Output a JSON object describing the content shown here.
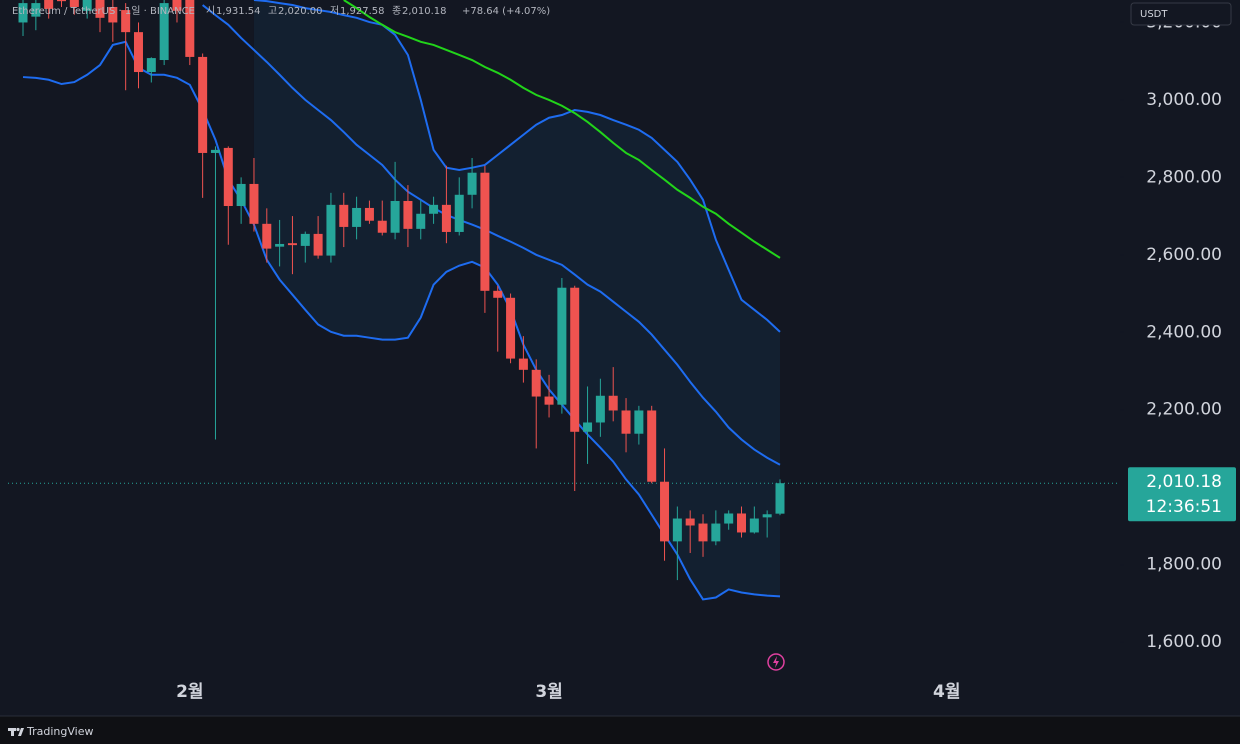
{
  "chart_data": {
    "type": "candlestick",
    "title": "Ethereum / TetherUS · 1일 · BINANCE",
    "ohlc_header": [
      {
        "label": "시",
        "value": "1,931.54"
      },
      {
        "label": "고",
        "value": "2,020.00"
      },
      {
        "label": "저",
        "value": "1,927.58"
      },
      {
        "label": "종",
        "value": "2,010.18"
      }
    ],
    "change": "+78.64 (+4.07%)",
    "currency": "USDT",
    "branding": "TradingView",
    "categories": [
      null,
      null,
      null,
      null,
      null,
      null,
      null,
      null,
      null,
      null,
      null,
      null,
      null,
      "2월",
      null,
      null,
      null,
      null,
      null,
      null,
      null,
      null,
      null,
      null,
      null,
      null,
      null,
      null,
      null,
      null,
      null,
      null,
      null,
      null,
      null,
      null,
      null,
      null,
      null,
      null,
      null,
      "3월",
      null,
      null,
      null,
      null,
      null,
      null,
      null,
      null,
      null,
      null,
      null,
      null,
      null,
      null,
      null,
      null,
      null,
      null,
      null,
      null,
      null,
      null,
      null,
      null,
      null,
      null,
      null,
      null,
      null,
      null,
      "4월",
      null,
      null,
      null,
      null,
      null,
      null,
      null,
      null,
      null,
      null,
      null,
      null,
      null
    ],
    "open": [
      3200,
      3215,
      3260,
      3275,
      3270,
      3230,
      3265,
      3240,
      3232,
      3175,
      3072,
      3103,
      3280,
      3260,
      3111,
      2863,
      2876,
      2726,
      2783,
      2680,
      2621,
      2630,
      2623,
      2654,
      2598,
      2729,
      2672,
      2721,
      2688,
      2657,
      2739,
      2667,
      2706,
      2729,
      2659,
      2755,
      2812,
      2507,
      2489,
      2332,
      2303,
      2234,
      2213,
      2515,
      2143,
      2167,
      2236,
      2198,
      2138,
      2198,
      2014,
      1860,
      1919,
      1906,
      1860,
      1906,
      1932,
      1883,
      1922,
      1931.54,
      null,
      null,
      null,
      null,
      null,
      null,
      null,
      null,
      null,
      null,
      null,
      null,
      null,
      null,
      null,
      null,
      null,
      null,
      null,
      null,
      null,
      null,
      null,
      null,
      null,
      null
    ],
    "high": [
      3290,
      3275,
      3300,
      3320,
      3310,
      3300,
      3300,
      3290,
      3250,
      3200,
      3110,
      3300,
      3320,
      3300,
      3120,
      2880,
      2880,
      2800,
      2850,
      2720,
      2690,
      2700,
      2660,
      2700,
      2760,
      2760,
      2750,
      2740,
      2740,
      2840,
      2780,
      2740,
      2750,
      2830,
      2800,
      2850,
      2830,
      2520,
      2500,
      2390,
      2330,
      2290,
      2540,
      2520,
      2260,
      2280,
      2310,
      2230,
      2210,
      2210,
      2100,
      1950,
      1940,
      1930,
      1940,
      1940,
      1950,
      1950,
      1940,
      2020,
      null,
      null,
      null,
      null,
      null,
      null,
      null,
      null,
      null,
      null,
      null,
      null,
      null,
      null,
      null,
      null,
      null,
      null,
      null,
      null,
      null,
      null,
      null,
      null,
      null,
      null
    ],
    "low": [
      3165,
      3180,
      3210,
      3240,
      3220,
      3210,
      3175,
      3150,
      3025,
      3030,
      3045,
      3090,
      3200,
      3090,
      2747,
      2123,
      2626,
      2680,
      2660,
      2580,
      2570,
      2550,
      2580,
      2590,
      2580,
      2620,
      2640,
      2680,
      2650,
      2640,
      2620,
      2640,
      2680,
      2630,
      2650,
      2720,
      2450,
      2350,
      2320,
      2270,
      2100,
      2180,
      2190,
      1990,
      2060,
      2130,
      2170,
      2090,
      2110,
      2010,
      1810,
      1760,
      1830,
      1820,
      1850,
      1890,
      1870,
      1880,
      1870,
      1927.58,
      null,
      null,
      null,
      null,
      null,
      null,
      null,
      null,
      null,
      null,
      null,
      null,
      null,
      null,
      null,
      null,
      null,
      null,
      null,
      null,
      null,
      null,
      null,
      null,
      null,
      null
    ],
    "close": [
      3250,
      3250,
      3235,
      3255,
      3240,
      3270,
      3212,
      3200,
      3175,
      3072,
      3108,
      3250,
      3230,
      3111,
      2863,
      2871,
      2726,
      2783,
      2680,
      2616,
      2628,
      2625,
      2654,
      2598,
      2729,
      2672,
      2721,
      2688,
      2657,
      2739,
      2667,
      2706,
      2729,
      2659,
      2755,
      2812,
      2507,
      2489,
      2332,
      2303,
      2234,
      2213,
      2515,
      2143,
      2167,
      2236,
      2198,
      2138,
      2198,
      2014,
      1860,
      1919,
      1901,
      1860,
      1906,
      1932,
      1883,
      1919,
      1930,
      2010.18,
      null,
      null,
      null,
      null,
      null,
      null,
      null,
      null,
      null,
      null,
      null,
      null,
      null,
      null,
      null,
      null,
      null,
      null,
      null,
      null,
      null,
      null,
      null,
      null,
      null,
      null
    ],
    "up_color": "#26a69a",
    "down_color": "#ef5350",
    "series": [
      {
        "color": "#1e6cf0",
        "values": [
          null,
          null,
          null,
          null,
          null,
          null,
          null,
          null,
          null,
          null,
          null,
          null,
          null,
          null,
          null,
          null,
          null,
          null,
          3258,
          3255,
          3250,
          3245,
          3237,
          3232,
          3227,
          3219,
          3212,
          3201,
          3194,
          3168,
          3116,
          3000,
          2871,
          2825,
          2819,
          2825,
          2832,
          2858,
          2884,
          2910,
          2936,
          2954,
          2961,
          2974,
          2969,
          2961,
          2948,
          2936,
          2923,
          2902,
          2871,
          2840,
          2794,
          2742,
          2639,
          2561,
          2484,
          2458,
          2432,
          2401,
          null,
          null,
          null,
          null,
          null,
          null,
          null,
          null,
          null,
          null,
          null,
          null,
          null,
          null,
          null,
          null,
          null,
          null,
          null,
          null,
          null,
          null,
          null,
          null,
          null,
          null
        ]
      },
      {
        "color": "#1e6cf0",
        "values": [
          null,
          null,
          null,
          null,
          null,
          null,
          null,
          null,
          null,
          null,
          null,
          null,
          null,
          null,
          3245,
          3219,
          3194,
          3160,
          3129,
          3098,
          3065,
          3031,
          3000,
          2974,
          2948,
          2917,
          2884,
          2858,
          2832,
          2794,
          2763,
          2742,
          2721,
          2703,
          2690,
          2678,
          2665,
          2649,
          2634,
          2618,
          2600,
          2587,
          2574,
          2549,
          2523,
          2505,
          2479,
          2453,
          2427,
          2394,
          2355,
          2316,
          2272,
          2231,
          2195,
          2154,
          2123,
          2097,
          2076,
          2058,
          null,
          null,
          null,
          null,
          null,
          null,
          null,
          null,
          null,
          null,
          null,
          null,
          null,
          null,
          null,
          null,
          null,
          null,
          null,
          null,
          null,
          null,
          null,
          null,
          null,
          null
        ]
      },
      {
        "color": "#1e6cf0",
        "values": [
          3059,
          3057,
          3052,
          3041,
          3046,
          3065,
          3090,
          3142,
          3150,
          3083,
          3065,
          3065,
          3057,
          3039,
          2974,
          2897,
          2794,
          2742,
          2678,
          2587,
          2536,
          2497,
          2458,
          2420,
          2401,
          2391,
          2391,
          2386,
          2381,
          2381,
          2386,
          2438,
          2523,
          2556,
          2572,
          2582,
          2567,
          2523,
          2458,
          2368,
          2303,
          2252,
          2213,
          2174,
          2136,
          2102,
          2066,
          2020,
          1981,
          1929,
          1877,
          1826,
          1762,
          1710,
          1715,
          1736,
          1728,
          1723,
          1720,
          1718,
          null,
          null,
          null,
          null,
          null,
          null,
          null,
          null,
          null,
          null,
          null,
          null,
          null,
          null,
          null,
          null,
          null,
          null,
          null,
          null,
          null,
          null,
          null,
          null,
          null,
          null
        ]
      },
      {
        "color": "#22d41a",
        "values": [
          null,
          null,
          null,
          null,
          null,
          null,
          null,
          null,
          null,
          null,
          null,
          null,
          null,
          null,
          null,
          null,
          null,
          null,
          null,
          null,
          null,
          null,
          null,
          null,
          null,
          3258,
          3237,
          3214,
          3194,
          3175,
          3163,
          3150,
          3142,
          3129,
          3116,
          3103,
          3085,
          3070,
          3052,
          3031,
          3013,
          3000,
          2985,
          2966,
          2943,
          2917,
          2889,
          2863,
          2845,
          2819,
          2794,
          2768,
          2747,
          2724,
          2706,
          2680,
          2657,
          2634,
          2613,
          2592,
          null,
          null,
          null,
          null,
          null,
          null,
          null,
          null,
          null,
          null,
          null,
          null,
          null,
          null,
          null,
          null,
          null,
          null,
          null,
          null,
          null,
          null,
          null,
          null,
          null,
          null
        ]
      }
    ],
    "ylim": [
      1502,
      3258
    ],
    "yticks": [
      {
        "value": 1600,
        "label": "1,600.00"
      },
      {
        "value": 1800,
        "label": "1,800.00"
      },
      {
        "value": 2200,
        "label": "2,200.00"
      },
      {
        "value": 2400,
        "label": "2,400.00"
      },
      {
        "value": 2600,
        "label": "2,600.00"
      },
      {
        "value": 2800,
        "label": "2,800.00"
      },
      {
        "value": 3000,
        "label": "3,000.00"
      },
      {
        "value": 3200,
        "label": "3,200.00"
      }
    ],
    "last_price": {
      "value": 2010.18,
      "label": "2,010.18"
    },
    "countdown": "12:36:51"
  }
}
